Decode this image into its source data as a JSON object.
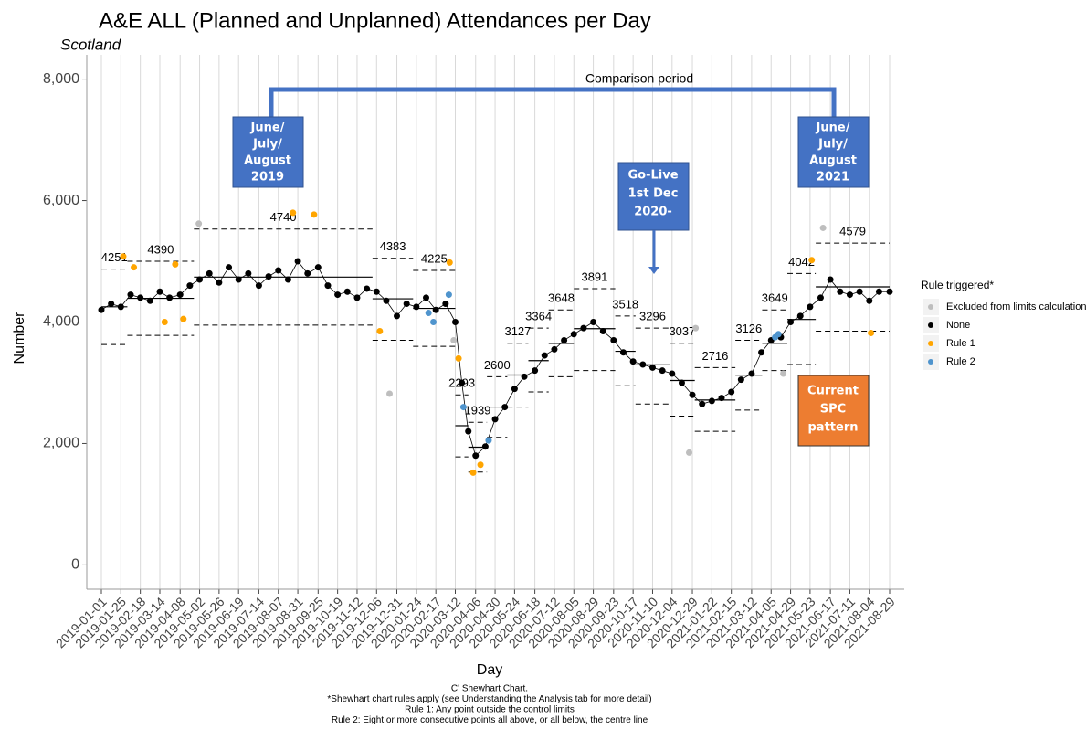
{
  "chart_data": {
    "type": "line",
    "title": "A&E  ALL (Planned and Unplanned) Attendances per Day",
    "subtitle": "Scotland",
    "x_label": "Day",
    "y_label": "Number",
    "ylim": [
      -400,
      8400
    ],
    "yticks": [
      {
        "value": 0,
        "label": "0"
      },
      {
        "value": 2000,
        "label": "2,000"
      },
      {
        "value": 4000,
        "label": "4,000"
      },
      {
        "value": 6000,
        "label": "6,000"
      },
      {
        "value": 8000,
        "label": "8,000"
      }
    ],
    "xlim": [
      "2018-12-14",
      "2021-09-16"
    ],
    "xticks": [
      "2019-01-01",
      "2019-01-25",
      "2019-02-18",
      "2019-03-14",
      "2019-04-08",
      "2019-05-02",
      "2019-05-26",
      "2019-06-19",
      "2019-07-14",
      "2019-08-07",
      "2019-08-31",
      "2019-09-25",
      "2019-10-19",
      "2019-11-12",
      "2019-12-06",
      "2019-12-31",
      "2020-01-24",
      "2020-02-17",
      "2020-03-12",
      "2020-04-06",
      "2020-04-30",
      "2020-05-24",
      "2020-06-18",
      "2020-07-12",
      "2020-08-05",
      "2020-08-29",
      "2020-09-23",
      "2020-10-17",
      "2020-11-10",
      "2020-12-04",
      "2020-12-29",
      "2021-01-22",
      "2021-02-15",
      "2021-03-12",
      "2021-04-05",
      "2021-04-29",
      "2021-05-23",
      "2021-06-17",
      "2021-07-11",
      "2021-08-04",
      "2021-08-29"
    ],
    "grid": true,
    "legend_title": "Rule triggered*",
    "series": [
      {
        "name": "Excluded from limits calculation",
        "color": "#bebebe",
        "x": [
          "2019-05-01",
          "2019-12-22",
          "2020-03-10",
          "2020-12-25",
          "2021-01-02",
          "2021-04-20",
          "2021-06-08"
        ],
        "values": [
          5620,
          2820,
          3700,
          1850,
          3900,
          3150,
          5550
        ]
      },
      {
        "name": "None",
        "color": "#000000",
        "x": [
          "2019-01-01",
          "2019-01-13",
          "2019-01-25",
          "2019-02-06",
          "2019-02-18",
          "2019-03-02",
          "2019-03-14",
          "2019-03-26",
          "2019-04-08",
          "2019-04-20",
          "2019-05-02",
          "2019-05-14",
          "2019-05-26",
          "2019-06-07",
          "2019-06-19",
          "2019-07-01",
          "2019-07-14",
          "2019-07-26",
          "2019-08-07",
          "2019-08-19",
          "2019-08-31",
          "2019-09-12",
          "2019-09-25",
          "2019-10-07",
          "2019-10-19",
          "2019-10-31",
          "2019-11-12",
          "2019-11-24",
          "2019-12-06",
          "2019-12-18",
          "2019-12-31",
          "2020-01-12",
          "2020-01-24",
          "2020-02-05",
          "2020-02-17",
          "2020-02-29",
          "2020-03-12",
          "2020-03-20",
          "2020-03-28",
          "2020-04-06",
          "2020-04-18",
          "2020-04-30",
          "2020-05-12",
          "2020-05-24",
          "2020-06-05",
          "2020-06-18",
          "2020-06-30",
          "2020-07-12",
          "2020-07-24",
          "2020-08-05",
          "2020-08-17",
          "2020-08-29",
          "2020-09-10",
          "2020-09-23",
          "2020-10-05",
          "2020-10-17",
          "2020-10-29",
          "2020-11-10",
          "2020-11-22",
          "2020-12-04",
          "2020-12-16",
          "2020-12-29",
          "2021-01-10",
          "2021-01-22",
          "2021-02-03",
          "2021-02-15",
          "2021-02-27",
          "2021-03-12",
          "2021-03-24",
          "2021-04-05",
          "2021-04-17",
          "2021-04-29",
          "2021-05-11",
          "2021-05-23",
          "2021-06-05",
          "2021-06-17",
          "2021-06-29",
          "2021-07-11",
          "2021-07-23",
          "2021-08-04",
          "2021-08-16",
          "2021-08-29"
        ],
        "values": [
          4200,
          4300,
          4250,
          4450,
          4400,
          4350,
          4500,
          4400,
          4450,
          4600,
          4700,
          4800,
          4650,
          4900,
          4700,
          4800,
          4600,
          4750,
          4850,
          4700,
          5000,
          4800,
          4900,
          4600,
          4450,
          4500,
          4400,
          4550,
          4500,
          4350,
          4100,
          4300,
          4250,
          4400,
          4200,
          4300,
          4000,
          3000,
          2200,
          1800,
          1950,
          2400,
          2600,
          2900,
          3100,
          3200,
          3450,
          3550,
          3700,
          3800,
          3900,
          4000,
          3850,
          3700,
          3500,
          3350,
          3300,
          3250,
          3200,
          3150,
          3000,
          2800,
          2650,
          2700,
          2750,
          2850,
          3050,
          3150,
          3500,
          3700,
          3750,
          4000,
          4100,
          4250,
          4400,
          4700,
          4500,
          4450,
          4500,
          4350,
          4500,
          4500
        ]
      },
      {
        "name": "Rule 1",
        "color": "#ffa500",
        "x": [
          "2019-01-28",
          "2019-02-10",
          "2019-03-20",
          "2019-04-02",
          "2019-04-12",
          "2019-08-25",
          "2019-09-20",
          "2019-12-10",
          "2020-03-05",
          "2020-03-16",
          "2020-04-03",
          "2020-04-12",
          "2021-05-25",
          "2021-08-06"
        ],
        "values": [
          5080,
          4900,
          4000,
          4950,
          4050,
          5800,
          5770,
          3850,
          4980,
          3400,
          1520,
          1650,
          5020,
          3820
        ]
      },
      {
        "name": "Rule 2",
        "color": "#4f94cd",
        "x": [
          "2020-02-08",
          "2020-02-14",
          "2020-03-04",
          "2020-03-22",
          "2020-04-22",
          "2021-04-10",
          "2021-04-14"
        ],
        "values": [
          4150,
          4000,
          4450,
          2600,
          2050,
          3750,
          3800
        ]
      }
    ],
    "phases": [
      {
        "start": "2019-01-01",
        "end": "2019-02-02",
        "centre": 4251,
        "ucl": 4870,
        "lcl": 3630
      },
      {
        "start": "2019-02-02",
        "end": "2019-04-25",
        "centre": 4390,
        "ucl": 5000,
        "lcl": 3780
      },
      {
        "start": "2019-04-25",
        "end": "2019-12-01",
        "centre": 4740,
        "ucl": 5530,
        "lcl": 3950
      },
      {
        "start": "2019-12-01",
        "end": "2020-01-20",
        "centre": 4383,
        "ucl": 5050,
        "lcl": 3700
      },
      {
        "start": "2020-01-20",
        "end": "2020-03-12",
        "centre": 4225,
        "ucl": 4850,
        "lcl": 3600
      },
      {
        "start": "2020-03-12",
        "end": "2020-03-28",
        "centre": 2293,
        "ucl": 2800,
        "lcl": 1780
      },
      {
        "start": "2020-03-28",
        "end": "2020-04-20",
        "centre": 1939,
        "ucl": 2350,
        "lcl": 1530
      },
      {
        "start": "2020-04-20",
        "end": "2020-05-15",
        "centre": 2600,
        "ucl": 3100,
        "lcl": 2100
      },
      {
        "start": "2020-05-15",
        "end": "2020-06-10",
        "centre": 3127,
        "ucl": 3650,
        "lcl": 2600
      },
      {
        "start": "2020-06-10",
        "end": "2020-07-05",
        "centre": 3364,
        "ucl": 3900,
        "lcl": 2850
      },
      {
        "start": "2020-07-05",
        "end": "2020-08-05",
        "centre": 3648,
        "ucl": 4200,
        "lcl": 3100
      },
      {
        "start": "2020-08-05",
        "end": "2020-09-25",
        "centre": 3891,
        "ucl": 4550,
        "lcl": 3200
      },
      {
        "start": "2020-09-25",
        "end": "2020-10-20",
        "centre": 3518,
        "ucl": 4100,
        "lcl": 2950
      },
      {
        "start": "2020-10-20",
        "end": "2020-12-01",
        "centre": 3296,
        "ucl": 3900,
        "lcl": 2650
      },
      {
        "start": "2020-12-01",
        "end": "2021-01-01",
        "centre": 3037,
        "ucl": 3650,
        "lcl": 2450
      },
      {
        "start": "2021-01-01",
        "end": "2021-02-20",
        "centre": 2716,
        "ucl": 3250,
        "lcl": 2200
      },
      {
        "start": "2021-02-20",
        "end": "2021-03-25",
        "centre": 3126,
        "ucl": 3700,
        "lcl": 2550
      },
      {
        "start": "2021-03-25",
        "end": "2021-04-25",
        "centre": 3649,
        "ucl": 4200,
        "lcl": 3200
      },
      {
        "start": "2021-04-25",
        "end": "2021-05-30",
        "centre": 4042,
        "ucl": 4800,
        "lcl": 3300
      },
      {
        "start": "2021-05-30",
        "end": "2021-08-29",
        "centre": 4579,
        "ucl": 5300,
        "lcl": 3850
      }
    ],
    "annotations": {
      "comparison": "Comparison period",
      "box2019": [
        "June/",
        "July/",
        "August",
        "2019"
      ],
      "golive": [
        "Go-Live",
        "1st Dec",
        "2020-"
      ],
      "box2021": [
        "June/",
        "July/",
        "August",
        "2021"
      ],
      "current": [
        "Current",
        "SPC",
        "pattern"
      ]
    },
    "footnotes": [
      "C' Shewhart Chart.",
      "*Shewhart chart rules apply (see Understanding the Analysis tab for more detail)",
      "Rule 1: Any point outside the control limits",
      "Rule 2: Eight or more consecutive points all above, or all below, the centre line"
    ]
  }
}
